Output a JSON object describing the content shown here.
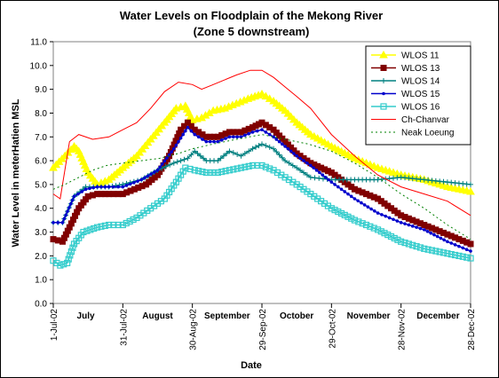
{
  "chart_data": {
    "type": "line",
    "title": "Water Levels on Floodplain of the Mekong River",
    "subtitle": "(Zone 5 downstream)",
    "xlabel": "Date",
    "ylabel": "Water Level in meterHatien MSL",
    "ylim": [
      0,
      11
    ],
    "yticks": [
      "0.0",
      "1.0",
      "2.0",
      "3.0",
      "4.0",
      "5.0",
      "6.0",
      "7.0",
      "8.0",
      "9.0",
      "10.0",
      "11.0"
    ],
    "xlim": [
      "2002-07-01",
      "2002-12-28"
    ],
    "date_ticks": [
      {
        "date": "2002-07-01",
        "label": "1-Jul-02"
      },
      {
        "date": "2002-07-31",
        "label": "31-Jul-02"
      },
      {
        "date": "2002-08-30",
        "label": "30-Aug-02"
      },
      {
        "date": "2002-09-29",
        "label": "29-Sep-02"
      },
      {
        "date": "2002-10-29",
        "label": "29-Oct-02"
      },
      {
        "date": "2002-11-28",
        "label": "28-Nov-02"
      },
      {
        "date": "2002-12-28",
        "label": "28-Dec-02"
      }
    ],
    "month_labels": [
      {
        "date": "2002-07-15",
        "label": "July"
      },
      {
        "date": "2002-08-15",
        "label": "August"
      },
      {
        "date": "2002-09-14",
        "label": "September"
      },
      {
        "date": "2002-10-14",
        "label": "October"
      },
      {
        "date": "2002-11-14",
        "label": "November"
      },
      {
        "date": "2002-12-14",
        "label": "December"
      }
    ],
    "grid": false,
    "legend_position": "top-right",
    "series": [
      {
        "name": "WLOS 11",
        "color": "#ffff00",
        "marker": "triangle",
        "points": [
          [
            "2002-07-01",
            5.7
          ],
          [
            "2002-07-06",
            6.2
          ],
          [
            "2002-07-10",
            6.6
          ],
          [
            "2002-07-12",
            6.4
          ],
          [
            "2002-07-16",
            5.5
          ],
          [
            "2002-07-20",
            5.0
          ],
          [
            "2002-07-25",
            5.2
          ],
          [
            "2002-07-31",
            5.7
          ],
          [
            "2002-08-06",
            6.2
          ],
          [
            "2002-08-12",
            6.9
          ],
          [
            "2002-08-18",
            7.6
          ],
          [
            "2002-08-23",
            8.2
          ],
          [
            "2002-08-27",
            8.3
          ],
          [
            "2002-08-30",
            7.7
          ],
          [
            "2002-09-03",
            7.8
          ],
          [
            "2002-09-08",
            8.1
          ],
          [
            "2002-09-13",
            8.2
          ],
          [
            "2002-09-18",
            8.4
          ],
          [
            "2002-09-23",
            8.6
          ],
          [
            "2002-09-29",
            8.8
          ],
          [
            "2002-10-04",
            8.5
          ],
          [
            "2002-10-09",
            8.1
          ],
          [
            "2002-10-14",
            7.6
          ],
          [
            "2002-10-20",
            7.1
          ],
          [
            "2002-10-29",
            6.6
          ],
          [
            "2002-11-08",
            6.1
          ],
          [
            "2002-11-18",
            5.7
          ],
          [
            "2002-11-28",
            5.4
          ],
          [
            "2002-12-08",
            5.2
          ],
          [
            "2002-12-18",
            4.9
          ],
          [
            "2002-12-28",
            4.7
          ]
        ]
      },
      {
        "name": "WLOS 13",
        "color": "#800000",
        "marker": "square",
        "points": [
          [
            "2002-07-01",
            2.7
          ],
          [
            "2002-07-05",
            2.6
          ],
          [
            "2002-07-08",
            3.2
          ],
          [
            "2002-07-12",
            4.0
          ],
          [
            "2002-07-16",
            4.5
          ],
          [
            "2002-07-20",
            4.6
          ],
          [
            "2002-07-25",
            4.6
          ],
          [
            "2002-07-31",
            4.6
          ],
          [
            "2002-08-05",
            4.8
          ],
          [
            "2002-08-10",
            5.0
          ],
          [
            "2002-08-15",
            5.4
          ],
          [
            "2002-08-20",
            6.2
          ],
          [
            "2002-08-25",
            7.3
          ],
          [
            "2002-08-28",
            7.6
          ],
          [
            "2002-08-31",
            7.3
          ],
          [
            "2002-09-05",
            7.0
          ],
          [
            "2002-09-10",
            7.0
          ],
          [
            "2002-09-15",
            7.2
          ],
          [
            "2002-09-20",
            7.2
          ],
          [
            "2002-09-25",
            7.4
          ],
          [
            "2002-09-29",
            7.6
          ],
          [
            "2002-10-04",
            7.3
          ],
          [
            "2002-10-09",
            6.8
          ],
          [
            "2002-10-14",
            6.3
          ],
          [
            "2002-10-20",
            5.9
          ],
          [
            "2002-10-29",
            5.5
          ],
          [
            "2002-11-08",
            4.8
          ],
          [
            "2002-11-18",
            4.4
          ],
          [
            "2002-11-28",
            3.7
          ],
          [
            "2002-12-08",
            3.3
          ],
          [
            "2002-12-18",
            2.9
          ],
          [
            "2002-12-28",
            2.5
          ]
        ]
      },
      {
        "name": "WLOS 14",
        "color": "#008080",
        "marker": "plus",
        "points": [
          [
            "2002-07-01",
            3.4
          ],
          [
            "2002-07-05",
            3.4
          ],
          [
            "2002-07-10",
            4.5
          ],
          [
            "2002-07-15",
            4.9
          ],
          [
            "2002-07-20",
            4.9
          ],
          [
            "2002-07-25",
            4.9
          ],
          [
            "2002-07-31",
            5.0
          ],
          [
            "2002-08-08",
            5.2
          ],
          [
            "2002-08-15",
            5.6
          ],
          [
            "2002-08-22",
            5.9
          ],
          [
            "2002-08-28",
            6.1
          ],
          [
            "2002-08-31",
            6.4
          ],
          [
            "2002-09-05",
            6.0
          ],
          [
            "2002-09-10",
            6.0
          ],
          [
            "2002-09-15",
            6.4
          ],
          [
            "2002-09-20",
            6.2
          ],
          [
            "2002-09-25",
            6.5
          ],
          [
            "2002-09-29",
            6.7
          ],
          [
            "2002-10-04",
            6.5
          ],
          [
            "2002-10-09",
            6.0
          ],
          [
            "2002-10-14",
            5.7
          ],
          [
            "2002-10-20",
            5.3
          ],
          [
            "2002-10-29",
            5.2
          ],
          [
            "2002-11-08",
            5.2
          ],
          [
            "2002-11-18",
            5.2
          ],
          [
            "2002-11-28",
            5.3
          ],
          [
            "2002-12-08",
            5.2
          ],
          [
            "2002-12-18",
            5.1
          ],
          [
            "2002-12-28",
            5.0
          ]
        ]
      },
      {
        "name": "WLOS 15",
        "color": "#0000cc",
        "marker": "dot",
        "points": [
          [
            "2002-07-01",
            3.4
          ],
          [
            "2002-07-05",
            3.4
          ],
          [
            "2002-07-10",
            4.5
          ],
          [
            "2002-07-15",
            4.8
          ],
          [
            "2002-07-20",
            4.9
          ],
          [
            "2002-07-25",
            4.9
          ],
          [
            "2002-07-31",
            4.9
          ],
          [
            "2002-08-08",
            5.2
          ],
          [
            "2002-08-15",
            5.6
          ],
          [
            "2002-08-22",
            6.5
          ],
          [
            "2002-08-28",
            7.4
          ],
          [
            "2002-08-31",
            7.1
          ],
          [
            "2002-09-05",
            6.8
          ],
          [
            "2002-09-10",
            6.8
          ],
          [
            "2002-09-15",
            7.0
          ],
          [
            "2002-09-20",
            7.0
          ],
          [
            "2002-09-25",
            7.2
          ],
          [
            "2002-09-29",
            7.3
          ],
          [
            "2002-10-04",
            7.0
          ],
          [
            "2002-10-09",
            6.6
          ],
          [
            "2002-10-14",
            6.2
          ],
          [
            "2002-10-20",
            5.8
          ],
          [
            "2002-10-29",
            5.1
          ],
          [
            "2002-11-08",
            4.4
          ],
          [
            "2002-11-18",
            3.8
          ],
          [
            "2002-11-28",
            3.4
          ],
          [
            "2002-12-08",
            3.1
          ],
          [
            "2002-12-18",
            2.6
          ],
          [
            "2002-12-28",
            2.2
          ]
        ]
      },
      {
        "name": "WLOS 16",
        "color": "#33cccc",
        "marker": "square-open",
        "points": [
          [
            "2002-07-01",
            1.8
          ],
          [
            "2002-07-04",
            1.6
          ],
          [
            "2002-07-07",
            1.7
          ],
          [
            "2002-07-10",
            2.5
          ],
          [
            "2002-07-14",
            3.0
          ],
          [
            "2002-07-20",
            3.2
          ],
          [
            "2002-07-25",
            3.3
          ],
          [
            "2002-07-31",
            3.3
          ],
          [
            "2002-08-06",
            3.6
          ],
          [
            "2002-08-12",
            4.0
          ],
          [
            "2002-08-18",
            4.4
          ],
          [
            "2002-08-23",
            5.1
          ],
          [
            "2002-08-27",
            5.7
          ],
          [
            "2002-08-31",
            5.6
          ],
          [
            "2002-09-05",
            5.5
          ],
          [
            "2002-09-10",
            5.5
          ],
          [
            "2002-09-15",
            5.6
          ],
          [
            "2002-09-20",
            5.7
          ],
          [
            "2002-09-25",
            5.8
          ],
          [
            "2002-09-29",
            5.8
          ],
          [
            "2002-10-04",
            5.6
          ],
          [
            "2002-10-09",
            5.3
          ],
          [
            "2002-10-14",
            5.0
          ],
          [
            "2002-10-20",
            4.6
          ],
          [
            "2002-10-29",
            4.0
          ],
          [
            "2002-11-08",
            3.5
          ],
          [
            "2002-11-18",
            3.1
          ],
          [
            "2002-11-28",
            2.6
          ],
          [
            "2002-12-08",
            2.3
          ],
          [
            "2002-12-18",
            2.1
          ],
          [
            "2002-12-28",
            1.9
          ]
        ]
      },
      {
        "name": "Ch-Chanvar",
        "color": "#ff0000",
        "marker": "none",
        "dash": "solid",
        "points": [
          [
            "2002-07-01",
            4.6
          ],
          [
            "2002-07-04",
            4.4
          ],
          [
            "2002-07-08",
            6.8
          ],
          [
            "2002-07-12",
            7.1
          ],
          [
            "2002-07-18",
            6.9
          ],
          [
            "2002-07-25",
            7.0
          ],
          [
            "2002-07-31",
            7.3
          ],
          [
            "2002-08-06",
            7.6
          ],
          [
            "2002-08-12",
            8.2
          ],
          [
            "2002-08-18",
            8.9
          ],
          [
            "2002-08-24",
            9.3
          ],
          [
            "2002-08-30",
            9.2
          ],
          [
            "2002-09-03",
            9.0
          ],
          [
            "2002-09-08",
            9.2
          ],
          [
            "2002-09-13",
            9.4
          ],
          [
            "2002-09-18",
            9.6
          ],
          [
            "2002-09-24",
            9.8
          ],
          [
            "2002-09-29",
            9.8
          ],
          [
            "2002-10-04",
            9.5
          ],
          [
            "2002-10-09",
            9.1
          ],
          [
            "2002-10-14",
            8.7
          ],
          [
            "2002-10-20",
            8.2
          ],
          [
            "2002-10-29",
            7.1
          ],
          [
            "2002-11-08",
            6.2
          ],
          [
            "2002-11-18",
            5.4
          ],
          [
            "2002-11-28",
            4.9
          ],
          [
            "2002-12-08",
            4.6
          ],
          [
            "2002-12-18",
            4.3
          ],
          [
            "2002-12-28",
            3.7
          ]
        ]
      },
      {
        "name": "Neak Loeung",
        "color": "#008000",
        "marker": "none",
        "dash": "dotted",
        "points": [
          [
            "2002-07-01",
            4.8
          ],
          [
            "2002-07-06",
            5.0
          ],
          [
            "2002-07-12",
            5.3
          ],
          [
            "2002-07-18",
            5.6
          ],
          [
            "2002-07-24",
            5.8
          ],
          [
            "2002-07-31",
            5.9
          ],
          [
            "2002-08-08",
            6.0
          ],
          [
            "2002-08-16",
            6.1
          ],
          [
            "2002-08-24",
            6.3
          ],
          [
            "2002-08-30",
            6.5
          ],
          [
            "2002-09-08",
            6.7
          ],
          [
            "2002-09-18",
            6.9
          ],
          [
            "2002-09-29",
            7.1
          ],
          [
            "2002-10-09",
            6.9
          ],
          [
            "2002-10-19",
            6.7
          ],
          [
            "2002-10-29",
            6.4
          ],
          [
            "2002-11-08",
            5.9
          ],
          [
            "2002-11-18",
            5.3
          ],
          [
            "2002-11-28",
            4.6
          ],
          [
            "2002-12-08",
            4.0
          ],
          [
            "2002-12-18",
            3.3
          ],
          [
            "2002-12-28",
            2.7
          ]
        ]
      }
    ]
  }
}
